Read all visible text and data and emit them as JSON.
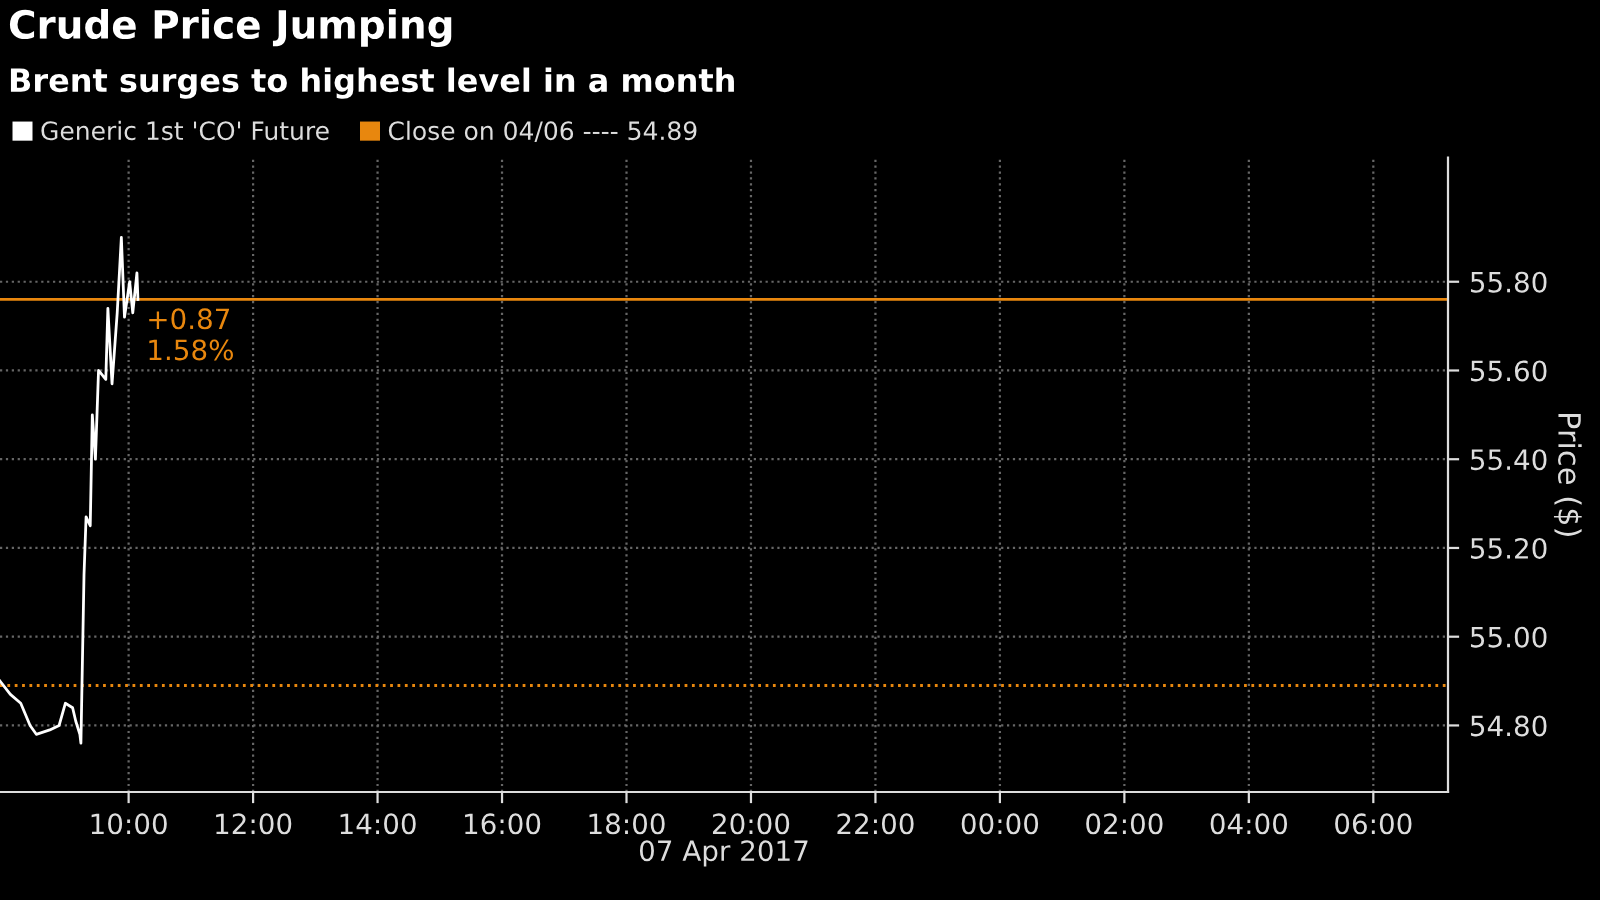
{
  "chart_data": {
    "type": "line",
    "title": "Crude Price Jumping",
    "subtitle": "Brent surges to highest level in a month",
    "xlabel": "07 Apr 2017",
    "ylabel": "Price ($)",
    "series": [
      {
        "name": "Generic 1st 'CO' Future",
        "color": "#ffffff",
        "x": [
          "2017-04-07T07:56",
          "2017-04-07T08:06",
          "2017-04-07T08:16",
          "2017-04-07T08:25",
          "2017-04-07T08:31",
          "2017-04-07T08:44",
          "2017-04-07T08:53",
          "2017-04-07T08:59",
          "2017-04-07T09:06",
          "2017-04-07T09:09",
          "2017-04-07T09:13",
          "2017-04-07T09:14",
          "2017-04-07T09:17",
          "2017-04-07T09:19",
          "2017-04-07T09:23",
          "2017-04-07T09:25",
          "2017-04-07T09:28",
          "2017-04-07T09:31",
          "2017-04-07T09:38",
          "2017-04-07T09:40",
          "2017-04-07T09:44",
          "2017-04-07T09:49",
          "2017-04-07T09:53",
          "2017-04-07T09:56",
          "2017-04-07T10:01",
          "2017-04-07T10:04",
          "2017-04-07T10:08",
          "2017-04-07T10:09"
        ],
        "values": [
          54.9,
          54.87,
          54.85,
          54.8,
          54.78,
          54.79,
          54.8,
          54.85,
          54.84,
          54.81,
          54.78,
          54.76,
          55.14,
          55.27,
          55.25,
          55.5,
          55.4,
          55.6,
          55.58,
          55.74,
          55.57,
          55.73,
          55.9,
          55.72,
          55.8,
          55.73,
          55.82,
          55.76
        ]
      }
    ],
    "ref_lines": [
      {
        "axis": "y",
        "value": 54.89,
        "label": "Close on 04/06 ---- 54.89",
        "color": "#e8870e",
        "line_style": "dotted"
      },
      {
        "axis": "y",
        "value": 55.76,
        "color": "#e8870e",
        "line_style": "solid"
      }
    ],
    "annotations": [
      {
        "text": "+0.87\n1.58%",
        "x": "2017-04-07T10:09",
        "y": 55.76
      }
    ],
    "xlim": [
      "2017-04-07T07:56",
      "2017-04-08T07:12"
    ],
    "ylim": [
      54.65,
      56.08
    ],
    "xticks": [
      {
        "value": "2017-04-07T10:00",
        "label": "10:00"
      },
      {
        "value": "2017-04-07T12:00",
        "label": "12:00"
      },
      {
        "value": "2017-04-07T14:00",
        "label": "14:00"
      },
      {
        "value": "2017-04-07T16:00",
        "label": "16:00"
      },
      {
        "value": "2017-04-07T18:00",
        "label": "18:00"
      },
      {
        "value": "2017-04-07T20:00",
        "label": "20:00"
      },
      {
        "value": "2017-04-07T22:00",
        "label": "22:00"
      },
      {
        "value": "2017-04-08T00:00",
        "label": "00:00"
      },
      {
        "value": "2017-04-08T02:00",
        "label": "02:00"
      },
      {
        "value": "2017-04-08T04:00",
        "label": "04:00"
      },
      {
        "value": "2017-04-08T06:00",
        "label": "06:00"
      }
    ],
    "yticks": [
      {
        "value": 54.8,
        "label": "54.80"
      },
      {
        "value": 55.0,
        "label": "55.00"
      },
      {
        "value": 55.2,
        "label": "55.20"
      },
      {
        "value": 55.4,
        "label": "55.40"
      },
      {
        "value": 55.6,
        "label": "55.60"
      },
      {
        "value": 55.8,
        "label": "55.80"
      }
    ],
    "grid": true,
    "legend": "top left",
    "line_style": "solid",
    "marker": "none"
  }
}
